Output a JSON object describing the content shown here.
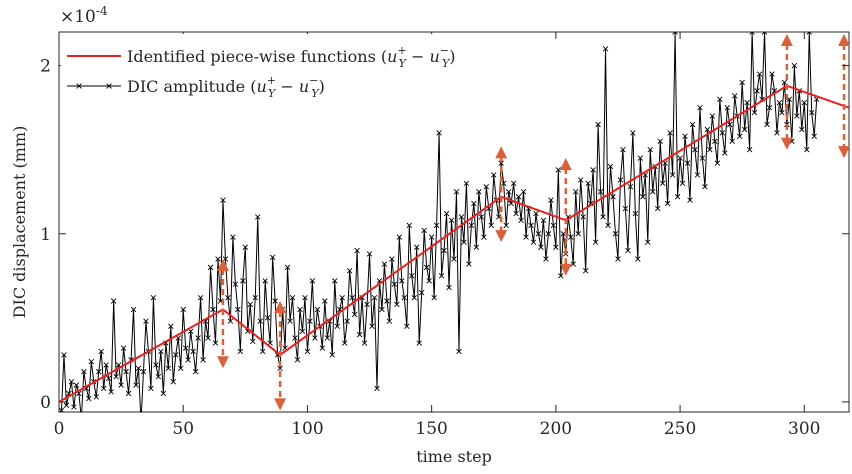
{
  "chart_data": {
    "type": "line",
    "xlabel": "time step",
    "ylabel": "DIC displacement (mm)",
    "y_exponent_label": "×10",
    "y_exponent_power": "-4",
    "xlim": [
      0,
      318
    ],
    "ylim": [
      -0.06,
      2.2
    ],
    "x_ticks": [
      0,
      50,
      100,
      150,
      200,
      250,
      300
    ],
    "y_ticks": [
      0,
      1,
      2
    ],
    "grid": false,
    "legend_position": "top-left",
    "series": [
      {
        "name": "Identified piece-wise functions (u_Y^+ − u_Y^−)",
        "color": "#e8201f",
        "x": [
          0,
          66,
          89,
          178,
          204,
          293,
          318
        ],
        "values": [
          0,
          0.55,
          0.28,
          1.22,
          1.08,
          1.88,
          1.75
        ]
      },
      {
        "name": "DIC amplitude (u_Y^+ − u_Y^−)",
        "color": "#000000",
        "marker": "x",
        "x_start": 0,
        "x_step": 1,
        "values": [
          -0.08,
          -0.05,
          0.28,
          -0.02,
          0.05,
          0.12,
          -0.03,
          0.1,
          0.05,
          -0.1,
          0.18,
          0.08,
          0.02,
          0.24,
          0.12,
          0.03,
          0.18,
          0.3,
          0.08,
          0.22,
          0.14,
          0.06,
          0.6,
          0.15,
          0.22,
          0.1,
          0.32,
          0.18,
          0.05,
          0.25,
          0.55,
          0.1,
          0.2,
          -0.12,
          0.18,
          0.48,
          0.3,
          0.08,
          0.62,
          0.22,
          0.15,
          0.3,
          0.05,
          0.35,
          0.2,
          0.45,
          0.12,
          0.28,
          0.38,
          0.2,
          0.55,
          0.32,
          0.25,
          0.42,
          0.3,
          0.18,
          0.38,
          0.62,
          0.25,
          0.48,
          0.38,
          0.8,
          0.55,
          0.35,
          0.85,
          0.6,
          1.2,
          0.85,
          0.62,
          0.48,
          0.98,
          0.7,
          0.55,
          0.3,
          0.72,
          0.92,
          0.42,
          0.58,
          0.36,
          0.62,
          1.1,
          0.48,
          0.3,
          0.72,
          0.5,
          0.35,
          0.86,
          0.6,
          0.28,
          0.2,
          0.55,
          0.32,
          0.8,
          0.48,
          0.62,
          0.38,
          0.25,
          0.55,
          0.42,
          0.62,
          0.3,
          0.48,
          0.72,
          0.38,
          0.55,
          0.45,
          0.32,
          0.6,
          0.38,
          0.48,
          0.28,
          0.72,
          0.45,
          0.55,
          0.62,
          0.35,
          0.48,
          0.78,
          0.62,
          0.52,
          0.9,
          0.4,
          0.62,
          0.35,
          0.58,
          0.88,
          0.45,
          0.62,
          0.08,
          0.72,
          0.55,
          0.82,
          0.6,
          0.48,
          0.85,
          0.7,
          0.58,
          0.98,
          0.72,
          0.62,
          0.45,
          1.05,
          0.75,
          0.62,
          0.92,
          0.35,
          0.65,
          1.02,
          0.8,
          0.72,
          0.98,
          0.62,
          1.05,
          1.6,
          0.75,
          0.9,
          1.12,
          0.68,
          1.08,
          0.85,
          1.25,
          0.3,
          1.1,
          0.95,
          1.3,
          0.82,
          1.05,
          1.18,
          0.92,
          1.25,
          1.1,
          0.98,
          1.28,
          1.15,
          1.05,
          1.35,
          1.2,
          1.1,
          1.42,
          1.3,
          1.05,
          1.25,
          1.18,
          1.3,
          1.12,
          1.22,
          1.08,
          1.25,
          0.98,
          1.15,
          1.05,
          0.95,
          1.12,
          1.0,
          0.92,
          1.08,
          0.85,
          1.0,
          1.2,
          1.05,
          0.92,
          1.38,
          0.75,
          1.0,
          0.88,
          1.1,
          0.98,
          0.82,
          1.25,
          1.0,
          1.32,
          1.1,
          0.78,
          1.3,
          1.18,
          1.38,
          0.95,
          1.65,
          1.25,
          1.1,
          2.1,
          1.05,
          1.4,
          1.22,
          1.0,
          0.85,
          1.32,
          1.5,
          1.15,
          0.9,
          1.28,
          1.6,
          1.12,
          0.85,
          1.45,
          1.22,
          1.35,
          0.95,
          1.5,
          1.25,
          1.4,
          1.15,
          1.55,
          1.3,
          1.42,
          1.18,
          1.6,
          1.35,
          2.2,
          1.22,
          1.45,
          1.3,
          1.58,
          1.42,
          1.2,
          1.65,
          1.5,
          1.35,
          1.75,
          1.45,
          1.28,
          1.62,
          1.5,
          1.7,
          1.55,
          1.42,
          1.8,
          1.6,
          1.48,
          1.75,
          1.65,
          1.55,
          1.82,
          1.7,
          1.58,
          1.9,
          1.62,
          1.78,
          1.5,
          2.2,
          1.72,
          1.85,
          1.95,
          1.8,
          2.2,
          1.65,
          1.75,
          1.95,
          1.85,
          1.6,
          1.78,
          1.72,
          1.9,
          1.65,
          1.8,
          1.55,
          2.0,
          1.7,
          1.85,
          1.62,
          1.78,
          1.5,
          2.2,
          1.72,
          1.58,
          1.8
        ]
      }
    ],
    "annotations": {
      "type": "double-arrow",
      "color": "#d9613b",
      "x": [
        66,
        89,
        178,
        204,
        293,
        318
      ],
      "ranges": [
        [
          0.2,
          0.85
        ],
        [
          -0.05,
          0.6
        ],
        [
          0.95,
          1.52
        ],
        [
          0.75,
          1.45
        ],
        [
          1.5,
          2.2
        ],
        [
          1.45,
          2.2
        ]
      ]
    }
  }
}
